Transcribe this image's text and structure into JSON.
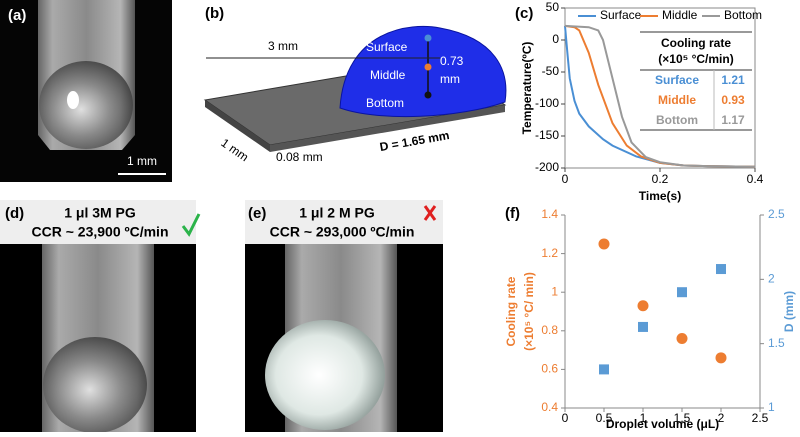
{
  "panel_labels": [
    "(a)",
    "(b)",
    "(c)",
    "(d)",
    "(e)",
    "(f)"
  ],
  "panel_a": {
    "scale_bar": "1 mm"
  },
  "panel_b": {
    "length": "3 mm",
    "width": "1 mm",
    "thickness": "0.08 mm",
    "diameter": "D = 1.65 mm",
    "surface": "Surface",
    "middle": "Middle",
    "bottom": "Bottom",
    "height": "0.73",
    "height_unit": "mm"
  },
  "panel_d": {
    "title": "1 μl 3M PG",
    "ccr": "CCR ~ 23,900 ºC/min"
  },
  "panel_e": {
    "title": "1 μl 2 M PG",
    "ccr": "CCR ~ 293,000 ºC/min"
  },
  "chart_data": [
    {
      "type": "line",
      "xlabel": "Time(s)",
      "ylabel": "Temperature(ºC)",
      "xlim": [
        0,
        0.4
      ],
      "xticks": [
        0,
        0.2,
        0.4
      ],
      "ylim": [
        -200,
        50
      ],
      "yticks": [
        50,
        0,
        -50,
        -100,
        -150,
        -200
      ],
      "series": [
        {
          "name": "Surface",
          "color": "#4a8fd4",
          "x": [
            0,
            0.005,
            0.01,
            0.02,
            0.03,
            0.05,
            0.08,
            0.1,
            0.15,
            0.2,
            0.25,
            0.3,
            0.4
          ],
          "values": [
            22,
            -20,
            -60,
            -95,
            -115,
            -135,
            -155,
            -165,
            -182,
            -192,
            -196,
            -197,
            -198
          ]
        },
        {
          "name": "Middle",
          "color": "#ed7d31",
          "x": [
            0,
            0.02,
            0.03,
            0.05,
            0.07,
            0.1,
            0.13,
            0.16,
            0.2,
            0.25,
            0.3,
            0.4
          ],
          "values": [
            22,
            20,
            15,
            -20,
            -70,
            -130,
            -165,
            -182,
            -192,
            -196,
            -197,
            -198
          ]
        },
        {
          "name": "Bottom",
          "color": "#999999",
          "x": [
            0,
            0.05,
            0.07,
            0.08,
            0.1,
            0.12,
            0.14,
            0.17,
            0.2,
            0.25,
            0.3,
            0.4
          ],
          "values": [
            22,
            20,
            15,
            0,
            -60,
            -120,
            -160,
            -183,
            -191,
            -196,
            -197,
            -198
          ]
        }
      ],
      "table": {
        "header": [
          "Cooling rate",
          "(×10⁵ °C/min)"
        ],
        "rows": [
          [
            "Surface",
            "1.21"
          ],
          [
            "Middle",
            "0.93"
          ],
          [
            "Bottom",
            "1.17"
          ]
        ]
      }
    },
    {
      "type": "scatter",
      "xlabel": "Droplet volume (μL)",
      "ylabel": [
        "Cooling rate",
        "(×10⁵ °C/ min)"
      ],
      "y2label": "D (mm)",
      "xlim": [
        0,
        2.5
      ],
      "xticks": [
        0,
        0.5,
        1,
        1.5,
        2,
        2.5
      ],
      "ylim": [
        0.4,
        1.4
      ],
      "yticks": [
        0.4,
        0.6,
        0.8,
        1,
        1.2,
        1.4
      ],
      "y2lim": [
        1,
        2.5
      ],
      "y2ticks": [
        1,
        1.5,
        2,
        2.5
      ],
      "series": [
        {
          "color": "#ed7d31",
          "marker": "circle",
          "x": [
            0.5,
            1,
            1.5,
            2
          ],
          "values": [
            1.25,
            0.93,
            0.76,
            0.66
          ]
        },
        {
          "color": "#5b9bd5",
          "marker": "square",
          "axis": "y2",
          "x": [
            0.5,
            1,
            1.5,
            2
          ],
          "values": [
            1.3,
            1.63,
            1.9,
            2.08
          ]
        }
      ]
    }
  ]
}
